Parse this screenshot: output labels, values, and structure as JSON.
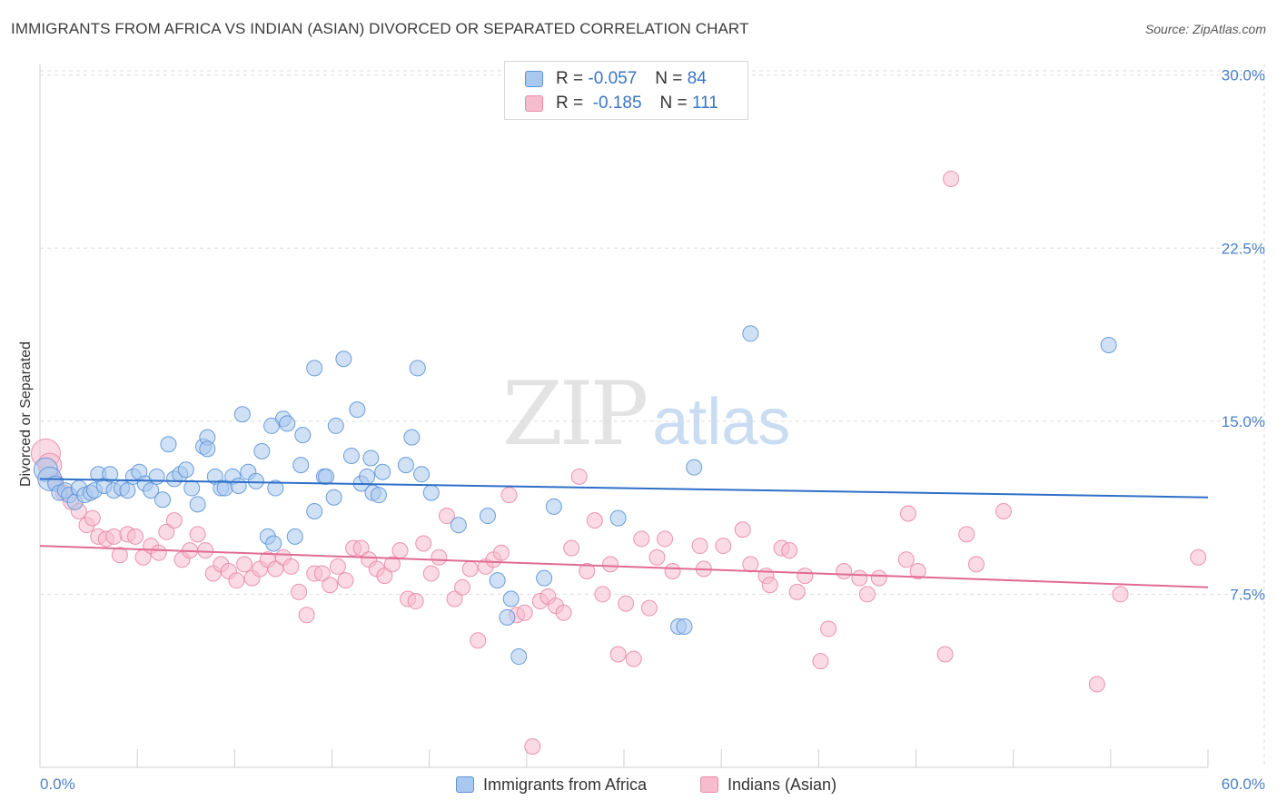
{
  "header": {
    "title": "IMMIGRANTS FROM AFRICA VS INDIAN (ASIAN) DIVORCED OR SEPARATED CORRELATION CHART",
    "source": "Source: ZipAtlas.com"
  },
  "watermark": {
    "zip": "ZIP",
    "atlas": "atlas"
  },
  "legend": {
    "rows": [
      {
        "r_label": "R =",
        "r_value": "-0.057",
        "n_label": "N =",
        "n_value": "84"
      },
      {
        "r_label": "R =",
        "r_value": "-0.185",
        "n_label": "N =",
        "n_value": "111"
      }
    ]
  },
  "bottom_legend": {
    "series1": "Immigrants from Africa",
    "series2": "Indians (Asian)"
  },
  "colors": {
    "blue_fill": "#a9c8ef",
    "blue_stroke": "#5b93d6",
    "blue_line": "#2e6fc8",
    "pink_fill": "#f6bccd",
    "pink_stroke": "#e98aa6",
    "pink_line": "#e06b93",
    "tick_text": "#4a80c8"
  },
  "chart_data": {
    "type": "scatter",
    "title": "IMMIGRANTS FROM AFRICA VS INDIAN (ASIAN) DIVORCED OR SEPARATED CORRELATION CHART",
    "xlabel": "",
    "ylabel": "Divorced or Separated",
    "xlim": [
      0,
      60
    ],
    "ylim": [
      0,
      30.5
    ],
    "x_tick_labels": [
      "0.0%",
      "60.0%"
    ],
    "y_ticks": [
      7.5,
      15.0,
      22.5,
      30.0
    ],
    "y_tick_labels": [
      "7.5%",
      "15.0%",
      "22.5%",
      "30.0%"
    ],
    "grid": true,
    "series": [
      {
        "name": "Immigrants from Africa",
        "r": -0.057,
        "n": 84,
        "trend": [
          [
            0,
            12.5
          ],
          [
            60,
            11.7
          ]
        ],
        "points": [
          [
            0.3,
            12.9
          ],
          [
            0.5,
            12.5
          ],
          [
            0.8,
            12.3
          ],
          [
            1.0,
            11.9
          ],
          [
            1.3,
            12.0
          ],
          [
            1.5,
            11.8
          ],
          [
            1.8,
            11.5
          ],
          [
            2.0,
            12.1
          ],
          [
            2.3,
            11.8
          ],
          [
            2.6,
            11.9
          ],
          [
            2.8,
            12.0
          ],
          [
            3.0,
            12.7
          ],
          [
            3.3,
            12.2
          ],
          [
            3.6,
            12.7
          ],
          [
            3.8,
            12.0
          ],
          [
            4.2,
            12.1
          ],
          [
            4.5,
            12.0
          ],
          [
            4.8,
            12.6
          ],
          [
            5.1,
            12.8
          ],
          [
            5.4,
            12.3
          ],
          [
            5.7,
            12.0
          ],
          [
            6.0,
            12.6
          ],
          [
            6.3,
            11.6
          ],
          [
            6.6,
            14.0
          ],
          [
            6.9,
            12.5
          ],
          [
            7.2,
            12.7
          ],
          [
            7.5,
            12.9
          ],
          [
            7.8,
            12.1
          ],
          [
            8.1,
            11.4
          ],
          [
            8.4,
            13.9
          ],
          [
            8.6,
            14.3
          ],
          [
            9.0,
            12.6
          ],
          [
            9.3,
            12.1
          ],
          [
            9.5,
            12.1
          ],
          [
            9.9,
            12.6
          ],
          [
            10.2,
            12.2
          ],
          [
            10.4,
            15.3
          ],
          [
            10.7,
            12.8
          ],
          [
            11.1,
            12.4
          ],
          [
            11.4,
            13.7
          ],
          [
            11.7,
            10.0
          ],
          [
            12.1,
            12.1
          ],
          [
            12.5,
            15.1
          ],
          [
            12.7,
            14.9
          ],
          [
            11.9,
            14.8
          ],
          [
            13.1,
            10.0
          ],
          [
            13.4,
            13.1
          ],
          [
            13.5,
            14.4
          ],
          [
            14.1,
            11.1
          ],
          [
            14.1,
            17.3
          ],
          [
            14.6,
            12.6
          ],
          [
            14.7,
            12.6
          ],
          [
            15.1,
            11.7
          ],
          [
            15.2,
            14.8
          ],
          [
            15.6,
            17.7
          ],
          [
            16.0,
            13.5
          ],
          [
            16.3,
            15.5
          ],
          [
            16.5,
            12.3
          ],
          [
            16.8,
            12.6
          ],
          [
            17.0,
            13.4
          ],
          [
            17.1,
            11.9
          ],
          [
            17.6,
            12.8
          ],
          [
            18.8,
            13.1
          ],
          [
            19.1,
            14.3
          ],
          [
            19.4,
            17.3
          ],
          [
            19.6,
            12.7
          ],
          [
            20.1,
            11.9
          ],
          [
            21.5,
            10.5
          ],
          [
            23.0,
            10.9
          ],
          [
            23.5,
            8.1
          ],
          [
            24.0,
            6.5
          ],
          [
            24.2,
            7.3
          ],
          [
            24.6,
            4.8
          ],
          [
            25.9,
            8.2
          ],
          [
            26.4,
            11.3
          ],
          [
            29.7,
            10.8
          ],
          [
            32.8,
            6.1
          ],
          [
            33.1,
            6.1
          ],
          [
            33.6,
            13.0
          ],
          [
            36.5,
            18.8
          ],
          [
            54.9,
            18.3
          ],
          [
            8.6,
            13.8
          ],
          [
            12.0,
            9.7
          ],
          [
            17.4,
            11.8
          ]
        ]
      },
      {
        "name": "Indians (Asian)",
        "r": -0.185,
        "n": 111,
        "trend": [
          [
            0,
            9.6
          ],
          [
            60,
            7.8
          ]
        ],
        "points": [
          [
            0.3,
            13.6
          ],
          [
            0.5,
            13.1
          ],
          [
            0.8,
            12.4
          ],
          [
            1.2,
            11.9
          ],
          [
            1.6,
            11.5
          ],
          [
            2.0,
            11.1
          ],
          [
            2.4,
            10.5
          ],
          [
            2.7,
            10.8
          ],
          [
            3.0,
            10.0
          ],
          [
            3.4,
            9.9
          ],
          [
            3.8,
            10.0
          ],
          [
            4.1,
            9.2
          ],
          [
            4.5,
            10.1
          ],
          [
            4.9,
            10.0
          ],
          [
            5.3,
            9.1
          ],
          [
            5.7,
            9.6
          ],
          [
            6.1,
            9.3
          ],
          [
            6.5,
            10.2
          ],
          [
            6.9,
            10.7
          ],
          [
            7.3,
            9.0
          ],
          [
            7.7,
            9.4
          ],
          [
            8.1,
            10.1
          ],
          [
            8.5,
            9.4
          ],
          [
            8.9,
            8.4
          ],
          [
            9.3,
            8.8
          ],
          [
            9.7,
            8.5
          ],
          [
            10.1,
            8.1
          ],
          [
            10.5,
            8.8
          ],
          [
            10.9,
            8.2
          ],
          [
            11.3,
            8.6
          ],
          [
            11.7,
            9.0
          ],
          [
            12.1,
            8.6
          ],
          [
            12.5,
            9.1
          ],
          [
            12.9,
            8.7
          ],
          [
            13.3,
            7.6
          ],
          [
            13.7,
            6.6
          ],
          [
            14.1,
            8.4
          ],
          [
            14.5,
            8.4
          ],
          [
            14.9,
            7.9
          ],
          [
            15.3,
            8.7
          ],
          [
            15.7,
            8.1
          ],
          [
            16.1,
            9.5
          ],
          [
            16.5,
            9.5
          ],
          [
            16.9,
            9.0
          ],
          [
            17.3,
            8.6
          ],
          [
            17.7,
            8.3
          ],
          [
            18.1,
            8.8
          ],
          [
            18.5,
            9.4
          ],
          [
            18.9,
            7.3
          ],
          [
            19.3,
            7.2
          ],
          [
            19.7,
            9.7
          ],
          [
            20.1,
            8.4
          ],
          [
            20.5,
            9.1
          ],
          [
            20.9,
            10.9
          ],
          [
            21.3,
            7.3
          ],
          [
            21.7,
            7.8
          ],
          [
            22.1,
            8.6
          ],
          [
            22.5,
            5.5
          ],
          [
            22.9,
            8.7
          ],
          [
            23.3,
            9.0
          ],
          [
            23.7,
            9.3
          ],
          [
            24.1,
            11.8
          ],
          [
            24.5,
            6.6
          ],
          [
            24.9,
            6.7
          ],
          [
            25.3,
            0.9
          ],
          [
            25.7,
            7.2
          ],
          [
            26.1,
            7.4
          ],
          [
            26.5,
            7.0
          ],
          [
            26.9,
            6.7
          ],
          [
            27.3,
            9.5
          ],
          [
            27.7,
            12.6
          ],
          [
            28.1,
            8.5
          ],
          [
            28.5,
            10.7
          ],
          [
            28.9,
            7.5
          ],
          [
            29.3,
            8.8
          ],
          [
            29.7,
            4.9
          ],
          [
            30.1,
            7.1
          ],
          [
            30.5,
            4.7
          ],
          [
            30.9,
            9.9
          ],
          [
            31.3,
            6.9
          ],
          [
            31.7,
            9.1
          ],
          [
            32.1,
            9.9
          ],
          [
            32.5,
            8.5
          ],
          [
            33.9,
            9.6
          ],
          [
            34.1,
            8.6
          ],
          [
            35.1,
            9.6
          ],
          [
            36.1,
            10.3
          ],
          [
            36.5,
            8.8
          ],
          [
            37.3,
            8.3
          ],
          [
            37.5,
            7.9
          ],
          [
            38.1,
            9.5
          ],
          [
            38.5,
            9.4
          ],
          [
            38.9,
            7.6
          ],
          [
            39.3,
            8.3
          ],
          [
            40.1,
            4.6
          ],
          [
            40.5,
            6.0
          ],
          [
            41.3,
            8.5
          ],
          [
            42.1,
            8.2
          ],
          [
            42.5,
            7.5
          ],
          [
            43.1,
            8.2
          ],
          [
            44.5,
            9.0
          ],
          [
            44.6,
            11.0
          ],
          [
            45.1,
            8.5
          ],
          [
            46.5,
            4.9
          ],
          [
            46.8,
            25.5
          ],
          [
            47.6,
            10.1
          ],
          [
            48.1,
            8.8
          ],
          [
            49.5,
            11.1
          ],
          [
            54.3,
            3.6
          ],
          [
            55.5,
            7.5
          ],
          [
            59.5,
            9.1
          ]
        ]
      }
    ]
  }
}
